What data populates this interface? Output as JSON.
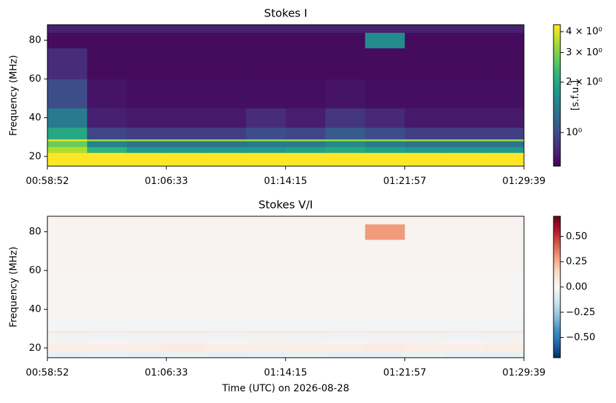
{
  "chart_data": [
    {
      "type": "heatmap",
      "title": "Stokes I",
      "ylabel": "Frequency (MHz)",
      "xlim": [
        "00:58:52",
        "01:29:39"
      ],
      "xticks": [
        "00:58:52",
        "01:06:33",
        "01:14:15",
        "01:21:57",
        "01:29:39"
      ],
      "ylim": [
        15,
        88
      ],
      "yticks": [
        20,
        40,
        60,
        80
      ],
      "y_bins": [
        15,
        18,
        22,
        25,
        28,
        29,
        35,
        45,
        60,
        76,
        84,
        88
      ],
      "z": [
        [
          4.4,
          4.4,
          4.4,
          4.4,
          4.4,
          4.4,
          4.4,
          4.4,
          4.4,
          4.4,
          4.4,
          4.4
        ],
        [
          4.4,
          4.4,
          4.4,
          4.4,
          4.4,
          4.4,
          4.4,
          4.4,
          4.4,
          4.4,
          4.4,
          4.4
        ],
        [
          3.5,
          2.2,
          1.8,
          1.8,
          1.8,
          1.8,
          1.9,
          2.0,
          1.9,
          1.8,
          1.8,
          1.8
        ],
        [
          2.8,
          1.5,
          1.3,
          1.3,
          1.3,
          1.4,
          1.4,
          1.6,
          1.4,
          1.3,
          1.3,
          1.3
        ],
        [
          4.0,
          3.2,
          3.2,
          3.2,
          3.2,
          3.2,
          3.2,
          3.2,
          3.2,
          3.2,
          3.2,
          3.2
        ],
        [
          2.0,
          0.95,
          0.9,
          0.9,
          0.9,
          1.0,
          0.95,
          1.1,
          1.0,
          0.9,
          0.9,
          0.9
        ],
        [
          1.4,
          0.75,
          0.72,
          0.72,
          0.72,
          0.8,
          0.74,
          0.85,
          0.78,
          0.72,
          0.72,
          0.72
        ],
        [
          1.0,
          0.7,
          0.68,
          0.68,
          0.68,
          0.68,
          0.68,
          0.7,
          0.68,
          0.68,
          0.68,
          0.68
        ],
        [
          0.8,
          0.67,
          0.67,
          0.67,
          0.67,
          0.67,
          0.67,
          0.67,
          0.67,
          0.67,
          0.67,
          0.67
        ],
        [
          0.67,
          0.67,
          0.67,
          0.67,
          0.67,
          0.67,
          0.67,
          0.67,
          1.6,
          0.67,
          0.67,
          0.67
        ],
        [
          0.75,
          0.75,
          0.75,
          0.75,
          0.75,
          0.75,
          0.75,
          0.75,
          0.75,
          0.75,
          0.75,
          0.75
        ]
      ],
      "colormap": "viridis",
      "clim": [
        0.63,
        4.4
      ],
      "color_scale": "log",
      "colorbar_label": "[s.f.u.]",
      "cticks": [
        {
          "value": 4,
          "label": "4 × 10⁰"
        },
        {
          "value": 3,
          "label": "3 × 10⁰"
        },
        {
          "value": 2,
          "label": "2 × 10⁰"
        },
        {
          "value": 1,
          "label": "10⁰"
        }
      ]
    },
    {
      "type": "heatmap",
      "title": "Stokes V/I",
      "ylabel": "Frequency (MHz)",
      "xlabel": "Time (UTC) on 2026-08-28",
      "xlim": [
        "00:58:52",
        "01:29:39"
      ],
      "xticks": [
        "00:58:52",
        "01:06:33",
        "01:14:15",
        "01:21:57",
        "01:29:39"
      ],
      "ylim": [
        15,
        88
      ],
      "yticks": [
        20,
        40,
        60,
        80
      ],
      "y_bins": [
        15,
        18,
        22,
        25,
        28,
        29,
        35,
        45,
        60,
        76,
        84,
        88
      ],
      "z": [
        [
          -0.05,
          -0.04,
          -0.05,
          -0.04,
          -0.05,
          -0.05,
          -0.04,
          -0.05,
          -0.05,
          -0.04,
          -0.05,
          -0.05
        ],
        [
          0.05,
          0.04,
          0.05,
          0.06,
          0.05,
          0.04,
          0.05,
          0.05,
          0.06,
          0.05,
          0.04,
          0.05
        ],
        [
          0.03,
          0.02,
          0.03,
          0.03,
          0.02,
          0.03,
          0.03,
          0.02,
          0.03,
          0.03,
          0.02,
          0.03
        ],
        [
          -0.03,
          -0.04,
          -0.03,
          -0.03,
          -0.04,
          -0.03,
          -0.03,
          -0.04,
          -0.03,
          -0.03,
          -0.04,
          -0.03
        ],
        [
          0.08,
          0.07,
          0.08,
          0.08,
          0.07,
          0.08,
          0.08,
          0.07,
          0.08,
          0.08,
          0.07,
          0.08
        ],
        [
          -0.02,
          -0.02,
          -0.02,
          -0.02,
          -0.02,
          -0.02,
          -0.02,
          -0.02,
          -0.02,
          -0.02,
          -0.02,
          -0.02
        ],
        [
          0.01,
          0.01,
          0.01,
          0.01,
          0.01,
          0.01,
          0.01,
          0.01,
          0.01,
          0.01,
          0.01,
          0.01
        ],
        [
          0.01,
          0.01,
          0.01,
          0.01,
          0.01,
          0.01,
          0.01,
          0.01,
          0.01,
          0.01,
          0.01,
          0.01
        ],
        [
          0.02,
          0.02,
          0.02,
          0.02,
          0.02,
          0.02,
          0.02,
          0.02,
          0.02,
          0.02,
          0.02,
          0.02
        ],
        [
          0.02,
          0.02,
          0.02,
          0.02,
          0.02,
          0.02,
          0.02,
          0.02,
          0.3,
          0.02,
          0.02,
          0.02
        ],
        [
          0.02,
          0.02,
          0.02,
          0.02,
          0.02,
          0.02,
          0.02,
          0.02,
          0.02,
          0.02,
          0.02,
          0.02
        ]
      ],
      "colormap": "RdBu_r",
      "clim": [
        -0.7,
        0.7
      ],
      "color_scale": "linear",
      "cticks": [
        {
          "value": 0.5,
          "label": "0.50"
        },
        {
          "value": 0.25,
          "label": "0.25"
        },
        {
          "value": 0,
          "label": "0.00"
        },
        {
          "value": -0.25,
          "label": "−0.25"
        },
        {
          "value": -0.5,
          "label": "−0.50"
        }
      ]
    }
  ]
}
